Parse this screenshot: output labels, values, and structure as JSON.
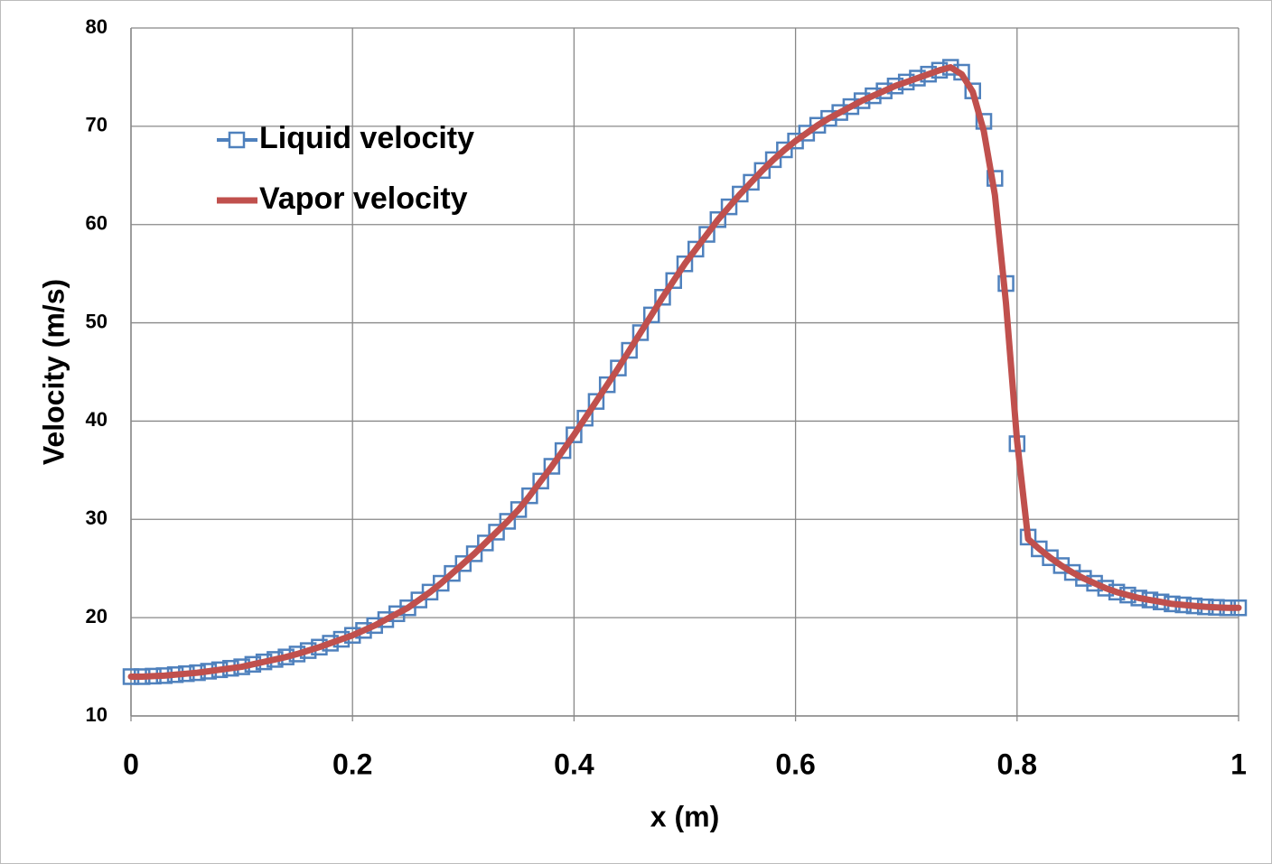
{
  "chart_data": {
    "type": "line",
    "x_label": "x (m)",
    "y_label": "Velocity (m/s)",
    "xlim": [
      0,
      1
    ],
    "xticks": [
      0,
      0.2,
      0.4,
      0.6,
      0.8,
      1
    ],
    "ylim": [
      10,
      80
    ],
    "yticks": [
      10,
      20,
      30,
      40,
      50,
      60,
      70,
      80
    ],
    "grid": true,
    "legend": "upper left",
    "x": [
      0,
      0.01,
      0.02,
      0.03,
      0.04,
      0.05,
      0.06,
      0.07,
      0.08,
      0.09,
      0.1,
      0.11,
      0.12,
      0.13,
      0.14,
      0.15,
      0.16,
      0.17,
      0.18,
      0.19,
      0.2,
      0.21,
      0.22,
      0.23,
      0.24,
      0.25,
      0.26,
      0.27,
      0.28,
      0.29,
      0.3,
      0.31,
      0.32,
      0.33,
      0.34,
      0.35,
      0.36,
      0.37,
      0.38,
      0.39,
      0.4,
      0.41,
      0.42,
      0.43,
      0.44,
      0.45,
      0.46,
      0.47,
      0.48,
      0.49,
      0.5,
      0.51,
      0.52,
      0.53,
      0.54,
      0.55,
      0.56,
      0.57,
      0.58,
      0.59,
      0.6,
      0.61,
      0.62,
      0.63,
      0.64,
      0.65,
      0.66,
      0.67,
      0.68,
      0.69,
      0.7,
      0.71,
      0.72,
      0.73,
      0.74,
      0.75,
      0.76,
      0.77,
      0.78,
      0.79,
      0.8,
      0.81,
      0.82,
      0.83,
      0.84,
      0.85,
      0.86,
      0.87,
      0.88,
      0.89,
      0.9,
      0.91,
      0.92,
      0.93,
      0.94,
      0.95,
      0.96,
      0.97,
      0.98,
      0.99,
      1
    ],
    "series": [
      {
        "name": "Liquid velocity",
        "color": "#4f81bd",
        "marker": "square",
        "values": [
          14.0,
          14.0,
          14.05,
          14.1,
          14.2,
          14.3,
          14.4,
          14.55,
          14.7,
          14.85,
          15.0,
          15.25,
          15.5,
          15.75,
          16.0,
          16.3,
          16.65,
          17.0,
          17.4,
          17.8,
          18.2,
          18.7,
          19.2,
          19.8,
          20.4,
          21.0,
          21.8,
          22.6,
          23.5,
          24.5,
          25.5,
          26.5,
          27.6,
          28.7,
          29.8,
          31.0,
          32.4,
          33.9,
          35.4,
          37.0,
          38.6,
          40.3,
          42.0,
          43.7,
          45.4,
          47.2,
          49.0,
          50.8,
          52.6,
          54.3,
          56.0,
          57.5,
          59.0,
          60.5,
          61.8,
          63.1,
          64.3,
          65.5,
          66.6,
          67.6,
          68.5,
          69.3,
          70.1,
          70.8,
          71.4,
          72.0,
          72.6,
          73.1,
          73.6,
          74.1,
          74.5,
          74.9,
          75.3,
          75.7,
          76.0,
          75.5,
          73.6,
          70.5,
          64.7,
          54.0,
          37.7,
          28.2,
          27.0,
          26.1,
          25.3,
          24.6,
          24.0,
          23.5,
          23.0,
          22.6,
          22.3,
          22.0,
          21.8,
          21.6,
          21.4,
          21.3,
          21.2,
          21.1,
          21.05,
          21.0,
          21.0
        ]
      },
      {
        "name": "Vapor velocity",
        "color": "#c0504d",
        "marker": "none",
        "values": [
          14.0,
          14.0,
          14.05,
          14.1,
          14.2,
          14.3,
          14.4,
          14.55,
          14.7,
          14.85,
          15.0,
          15.25,
          15.5,
          15.75,
          16.0,
          16.3,
          16.65,
          17.0,
          17.4,
          17.8,
          18.2,
          18.7,
          19.2,
          19.8,
          20.4,
          21.0,
          21.8,
          22.6,
          23.5,
          24.5,
          25.5,
          26.5,
          27.6,
          28.7,
          29.8,
          31.0,
          32.4,
          33.9,
          35.4,
          37.0,
          38.6,
          40.3,
          42.0,
          43.7,
          45.4,
          47.2,
          49.0,
          50.8,
          52.6,
          54.3,
          56.0,
          57.5,
          59.0,
          60.5,
          61.8,
          63.1,
          64.3,
          65.5,
          66.6,
          67.6,
          68.5,
          69.3,
          70.1,
          70.8,
          71.4,
          72.0,
          72.6,
          73.1,
          73.6,
          74.1,
          74.5,
          74.9,
          75.3,
          75.7,
          76.0,
          75.3,
          73.5,
          69.5,
          63.0,
          52.0,
          38.0,
          28.0,
          27.0,
          26.1,
          25.3,
          24.6,
          24.0,
          23.5,
          23.0,
          22.6,
          22.3,
          22.0,
          21.8,
          21.6,
          21.4,
          21.3,
          21.2,
          21.1,
          21.05,
          21.0,
          21.0
        ]
      }
    ]
  }
}
